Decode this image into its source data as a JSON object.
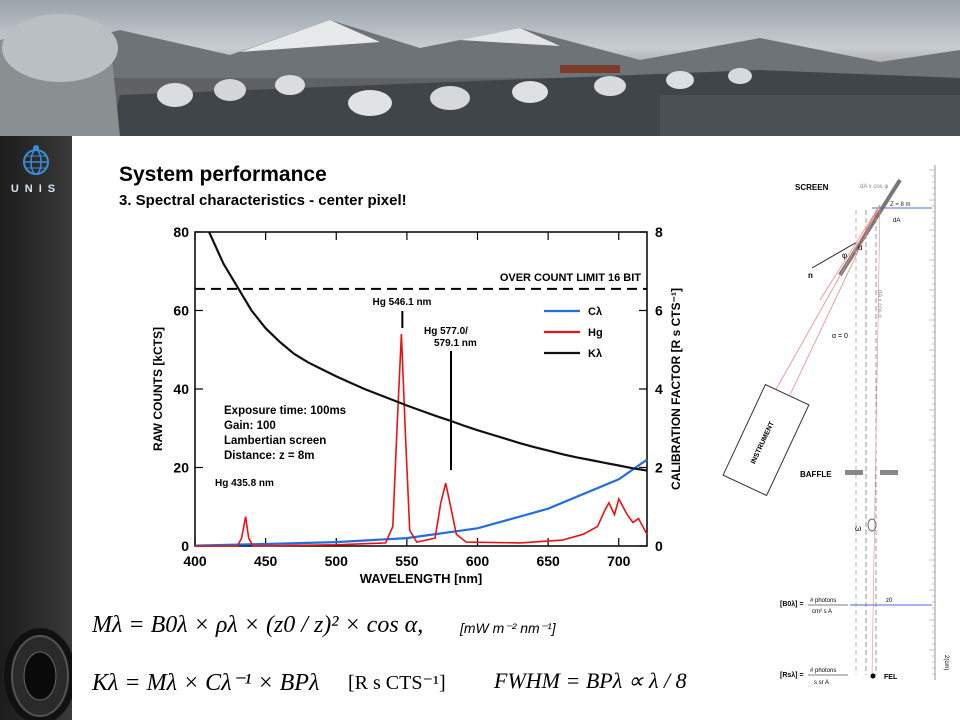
{
  "logo": {
    "text": "UNIS"
  },
  "header": {
    "title": "System performance",
    "subtitle": "3. Spectral characteristics - center pixel!"
  },
  "chart_data": {
    "type": "line",
    "xlabel": "WAVELENGTH [nm]",
    "ylabel": "RAW COUNTS [kCTS]",
    "y2label": "CALIBRATION FACTOR [R s CTS⁻¹]",
    "xlim": [
      400,
      720
    ],
    "ylim": [
      0,
      80
    ],
    "y2lim": [
      0,
      8
    ],
    "xticks": [
      400,
      450,
      500,
      550,
      600,
      650,
      700
    ],
    "yticks": [
      0,
      20,
      40,
      60,
      80
    ],
    "y2ticks": [
      0,
      2,
      4,
      6,
      8
    ],
    "limit_line": {
      "label": "OVER COUNT LIMIT 16 BIT",
      "y": 65.5
    },
    "legend": {
      "position": "top-right",
      "entries": [
        "Cλ",
        "Hg",
        "Kλ"
      ]
    },
    "annotations": [
      {
        "text": "Hg 546.1 nm",
        "x": 546.1,
        "y": 55
      },
      {
        "text": "Hg 577.0/",
        "x": 577.5,
        "y": 17
      },
      {
        "text": "579.1 nm",
        "x": 577.5,
        "y": 17
      },
      {
        "text": "Hg 435.8 nm",
        "x": 435.8,
        "y": 8
      }
    ],
    "info_text": [
      "Exposure time: 100ms",
      "Gain: 100",
      "Lambertian screen",
      "Distance: z = 8m"
    ],
    "series": [
      {
        "name": "Cλ",
        "color": "#1f6fe0",
        "axis": "y2",
        "x": [
          400,
          450,
          500,
          550,
          600,
          650,
          700,
          720
        ],
        "y": [
          0.01,
          0.05,
          0.1,
          0.2,
          0.45,
          0.95,
          1.7,
          2.2
        ]
      },
      {
        "name": "Hg",
        "color": "#ee1111",
        "axis": "y",
        "x": [
          400,
          430,
          433,
          435.8,
          438,
          441,
          500,
          535,
          540,
          543,
          546.1,
          549,
          552,
          557,
          570,
          574,
          577.5,
          581,
          585,
          592,
          630,
          660,
          675,
          685,
          690,
          693,
          697,
          700,
          703,
          706,
          710,
          714,
          720
        ],
        "y": [
          0,
          0,
          2,
          7.5,
          2,
          0,
          0.3,
          0.8,
          5,
          30,
          54,
          28,
          4,
          1,
          2,
          11,
          16,
          10,
          3,
          1,
          0.8,
          1.5,
          3,
          5,
          9,
          11,
          8,
          12,
          10,
          8,
          6,
          7,
          3
        ]
      },
      {
        "name": "Kλ",
        "color": "#111111",
        "axis": "y2",
        "x": [
          410,
          420,
          430,
          440,
          450,
          460,
          470,
          480,
          490,
          500,
          510,
          520,
          530,
          540,
          550,
          560,
          570,
          580,
          590,
          600,
          610,
          620,
          630,
          640,
          650,
          660,
          670,
          680,
          690,
          700,
          710,
          720
        ],
        "y": [
          8.0,
          7.2,
          6.6,
          6.0,
          5.55,
          5.2,
          4.9,
          4.68,
          4.5,
          4.32,
          4.16,
          4.0,
          3.86,
          3.72,
          3.58,
          3.45,
          3.32,
          3.2,
          3.07,
          2.95,
          2.84,
          2.73,
          2.62,
          2.52,
          2.43,
          2.34,
          2.26,
          2.19,
          2.12,
          2.05,
          1.98,
          1.92
        ]
      }
    ]
  },
  "equations": {
    "m_lambda": "Mλ = B0λ × ρλ × (z0 / z)² × cos α,",
    "m_unit": "[mW m⁻² nm⁻¹]",
    "k_lambda": "Kλ = Mλ × Cλ⁻¹ × BPλ",
    "k_unit": "[R s CTS⁻¹]",
    "fwhm": "FWHM = BPλ ∝ λ / 8"
  },
  "diagram": {
    "screen": "SCREEN",
    "da_cos_phi": "dA x cos φ",
    "z": "Z = 8 m",
    "da": "dA",
    "da_cos_alpha": "dA x cos α",
    "phi": "φ",
    "alpha": "α",
    "n": "n",
    "alpha_zero": "α = 0",
    "instrument": "INSTRUMENT",
    "baffle": "BAFFLE",
    "omega": "ω",
    "z0": "z0",
    "b_label": "[B0λ] =",
    "b_num": "# photons",
    "b_den": "cm² s A",
    "r_label": "[Rsλ] =",
    "r_num": "# photons",
    "r_den": "s sr A",
    "fel": "FEL",
    "ruler": "2(cm)"
  }
}
